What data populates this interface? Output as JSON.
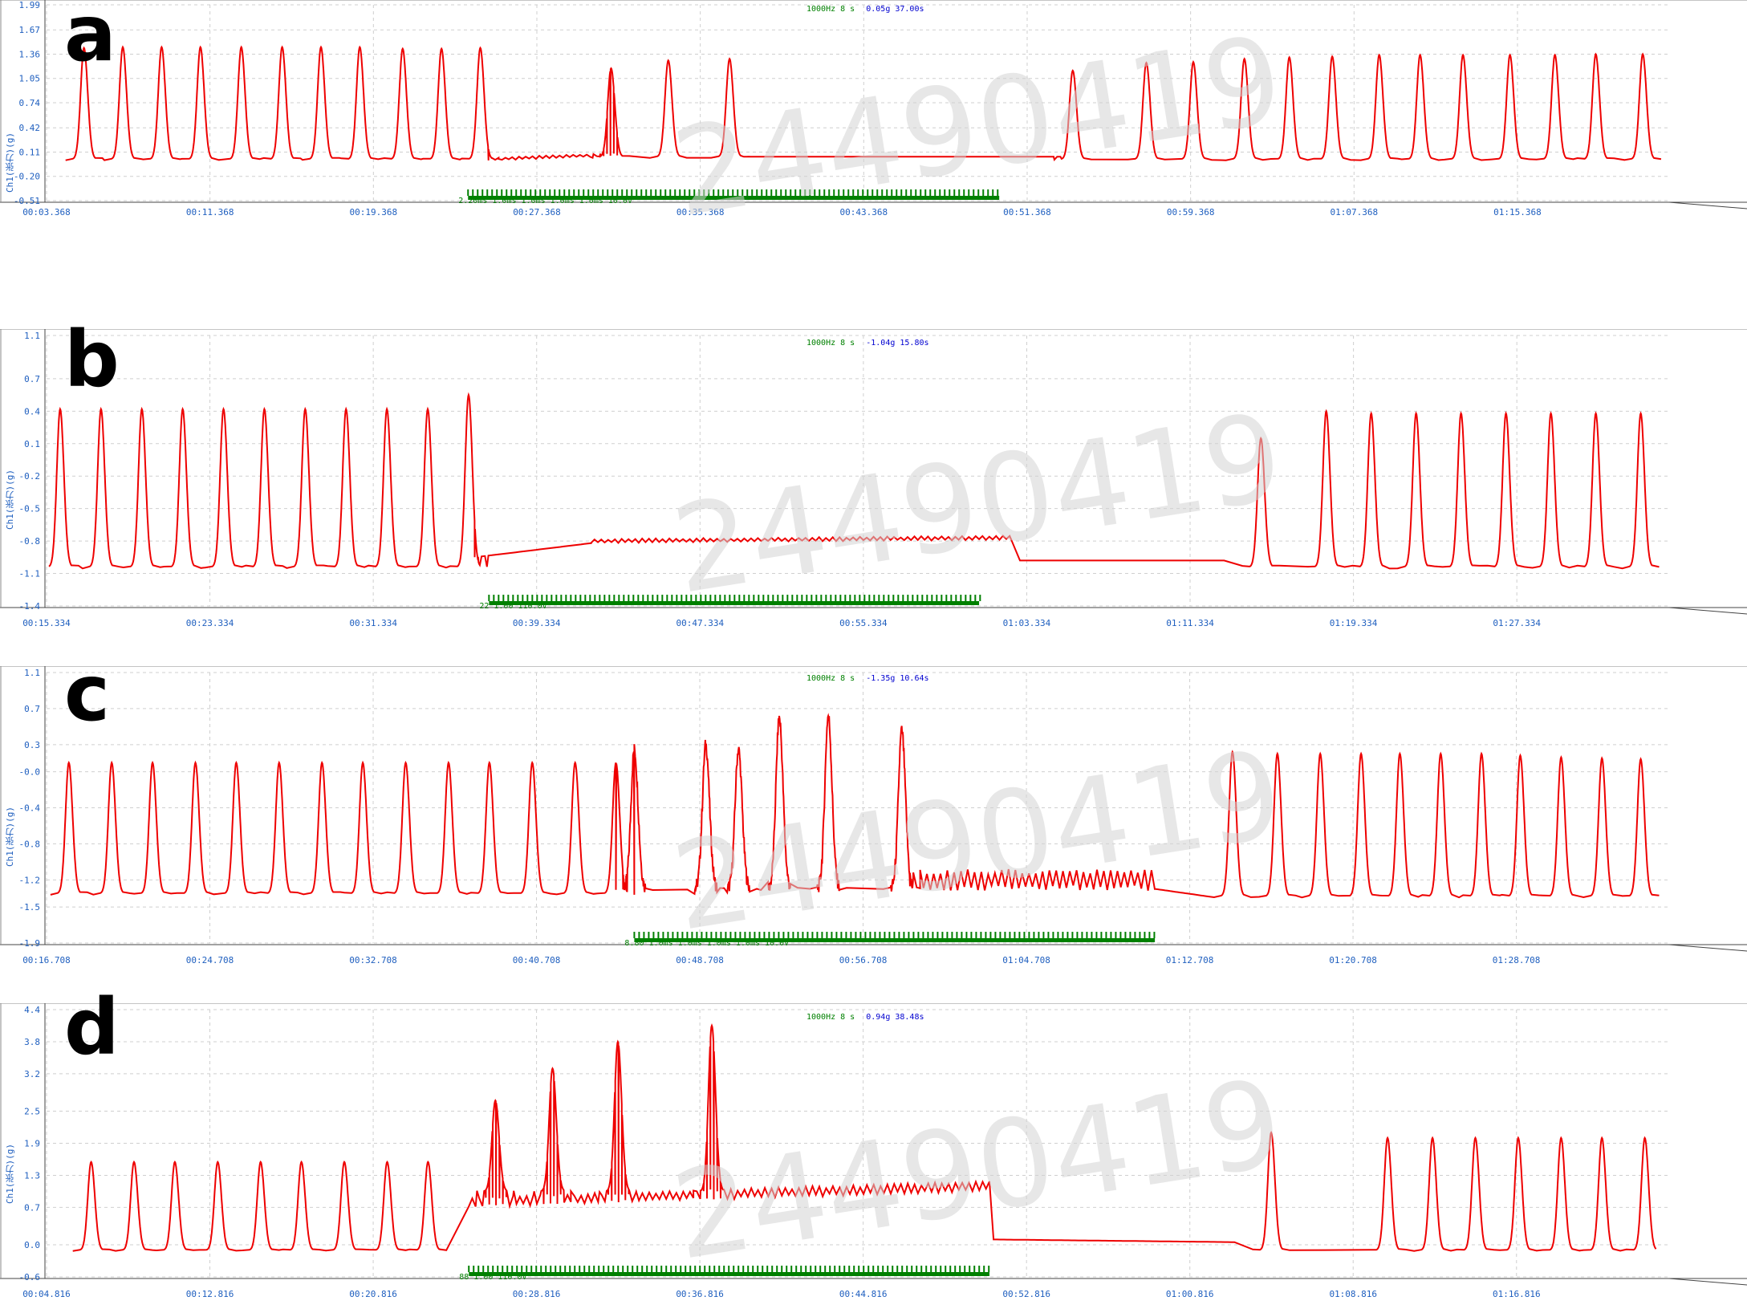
{
  "panels": [
    {
      "letter": "a",
      "rate_label": "1000Hz 8  s",
      "value_label": "0.05g 37.00s",
      "y_title": "Ch1(张力)(g)",
      "stim_label": "2.20ms 1.0ms 1.0ms 1.0ms 1.0ms 10.0V",
      "watermark": "24490419"
    },
    {
      "letter": "b",
      "rate_label": "1000Hz 8  s",
      "value_label": "-1.04g 15.80s",
      "y_title": "Ch1(张力)(g)",
      "stim_label": "22 1.00 110.0V",
      "watermark": "24490419"
    },
    {
      "letter": "c",
      "rate_label": "1000Hz 8  s",
      "value_label": "-1.35g 10.64s",
      "y_title": "Ch1(张力)(g)",
      "stim_label": "8.80 1.0ms 1.0ms 1.0ms 1.0ms 10.0V",
      "watermark": "24490419"
    },
    {
      "letter": "d",
      "rate_label": "1000Hz 8  s",
      "value_label": "0.94g 38.48s",
      "y_title": "Ch1(张力)(g)",
      "stim_label": "88 1.00 110.0V",
      "watermark": "24490419"
    }
  ],
  "colors": {
    "trace": "#ee0000",
    "stim": "#008000",
    "axis_text": "#1f5fbf",
    "grid": "#cfcfcf"
  },
  "chart_data": [
    {
      "type": "line",
      "panel": "a",
      "ylabel": "Ch1(张力)(g)",
      "y_ticks": [
        "1.99",
        "1.67",
        "1.36",
        "1.05",
        "0.74",
        "0.42",
        "0.11",
        "-0.20",
        "-0.51"
      ],
      "ylim": [
        -0.51,
        1.99
      ],
      "x_ticks": [
        "00:03.368",
        "00:11.368",
        "00:19.368",
        "00:27.368",
        "00:35.368",
        "00:43.368",
        "00:51.368",
        "00:59.368",
        "01:07.368",
        "01:15.368"
      ],
      "xlim_s": [
        3.368,
        82.4
      ],
      "baseline": 0.02,
      "segments": [
        {
          "kind": "peaks",
          "times_s": [
            5.2,
            7.1,
            9.0,
            10.9,
            12.9,
            14.9,
            16.8,
            18.7,
            20.8,
            22.7,
            24.6
          ],
          "heights": [
            1.44,
            1.45,
            1.45,
            1.45,
            1.45,
            1.45,
            1.45,
            1.45,
            1.43,
            1.43,
            1.44
          ],
          "baseline": 0.02
        },
        {
          "kind": "plateau",
          "t": [
            25.0,
            31.3
          ],
          "levels": [
            0.02,
            0.08
          ],
          "ripple": 0.02
        },
        {
          "kind": "peaks",
          "times_s": [
            31.0,
            33.8,
            36.8
          ],
          "heights": [
            1.18,
            1.28,
            1.3
          ],
          "baseline": 0.05
        },
        {
          "kind": "plateau",
          "t": [
            37.5,
            53.0
          ],
          "levels": [
            0.05,
            0.05
          ],
          "ripple": 0.0
        },
        {
          "kind": "peaks",
          "times_s": [
            53.6,
            57.2,
            59.5,
            62.0,
            64.2,
            66.3,
            68.6,
            70.6,
            72.7,
            75.0,
            77.2,
            79.2,
            81.5
          ],
          "heights": [
            1.15,
            1.25,
            1.26,
            1.3,
            1.32,
            1.33,
            1.35,
            1.35,
            1.35,
            1.35,
            1.35,
            1.36,
            1.36
          ],
          "baseline": 0.02
        }
      ],
      "stimulus_s": [
        24.0,
        50.0
      ]
    },
    {
      "type": "line",
      "panel": "b",
      "ylabel": "Ch1(张力)(g)",
      "y_ticks": [
        "1.1",
        "0.7",
        "0.4",
        "0.1",
        "-0.2",
        "-0.5",
        "-0.8",
        "-1.1",
        "-1.4"
      ],
      "ylim": [
        -1.4,
        1.1
      ],
      "x_ticks": [
        "00:15.334",
        "00:23.334",
        "00:31.334",
        "00:39.334",
        "00:47.334",
        "00:55.334",
        "01:03.334",
        "01:11.334",
        "01:19.334",
        "01:27.334"
      ],
      "xlim_s": [
        15.334,
        94.4
      ],
      "baseline": -1.04,
      "segments": [
        {
          "kind": "peaks",
          "times_s": [
            16.0,
            18.0,
            20.0,
            22.0,
            24.0,
            26.0,
            28.0,
            30.0,
            32.0,
            34.0,
            36.0
          ],
          "heights": [
            0.42,
            0.42,
            0.42,
            0.42,
            0.42,
            0.42,
            0.42,
            0.42,
            0.42,
            0.42,
            0.55
          ],
          "baseline": -1.04
        },
        {
          "kind": "plateau",
          "t": [
            36.3,
            42.0
          ],
          "levels": [
            -0.95,
            -0.82
          ],
          "ripple": 0.0
        },
        {
          "kind": "plateau",
          "t": [
            42.0,
            62.5
          ],
          "levels": [
            -0.8,
            -0.77
          ],
          "ripple": 0.02
        },
        {
          "kind": "plateau",
          "t": [
            63.0,
            73.0
          ],
          "levels": [
            -0.98,
            -0.98
          ],
          "ripple": 0.0
        },
        {
          "kind": "peaks",
          "times_s": [
            74.8,
            78.0,
            80.2,
            82.4,
            84.6,
            86.8,
            89.0,
            91.2,
            93.4
          ],
          "heights": [
            0.15,
            0.4,
            0.38,
            0.38,
            0.38,
            0.38,
            0.38,
            0.38,
            0.38
          ],
          "baseline": -1.04
        }
      ],
      "stimulus_s": [
        37.0,
        61.0
      ]
    },
    {
      "type": "line",
      "panel": "c",
      "ylabel": "Ch1(张力)(g)",
      "y_ticks": [
        "1.1",
        "0.7",
        "0.3",
        "-0.0",
        "-0.4",
        "-0.8",
        "-1.2",
        "-1.5",
        "-1.9"
      ],
      "ylim": [
        -1.9,
        1.1
      ],
      "x_ticks": [
        "00:16.708",
        "00:24.708",
        "00:32.708",
        "00:40.708",
        "00:48.708",
        "00:56.708",
        "01:04.708",
        "01:12.708",
        "01:20.708",
        "01:28.708"
      ],
      "xlim_s": [
        16.708,
        95.8
      ],
      "baseline": -1.35,
      "segments": [
        {
          "kind": "peaks",
          "times_s": [
            17.8,
            19.9,
            21.9,
            24.0,
            26.0,
            28.1,
            30.2,
            32.2,
            34.3,
            36.4,
            38.4,
            40.5,
            42.6,
            44.6
          ],
          "heights": [
            0.1,
            0.1,
            0.1,
            0.1,
            0.1,
            0.1,
            0.1,
            0.1,
            0.1,
            0.1,
            0.1,
            0.1,
            0.1,
            0.1
          ],
          "baseline": -1.35
        },
        {
          "kind": "peaks",
          "times_s": [
            45.5,
            49.0,
            50.6,
            52.6,
            55.0,
            58.6
          ],
          "heights": [
            0.25,
            0.3,
            0.25,
            0.6,
            0.62,
            0.45
          ],
          "baseline": -1.3,
          "ripple": 0.15
        },
        {
          "kind": "plateau",
          "t": [
            59.0,
            71.0
          ],
          "levels": [
            -1.2,
            -1.2
          ],
          "ripple": 0.12
        },
        {
          "kind": "plateau",
          "t": [
            71.0,
            73.5
          ],
          "levels": [
            -1.3,
            -1.38
          ],
          "ripple": 0.0
        },
        {
          "kind": "peaks",
          "times_s": [
            74.8,
            77.0,
            79.1,
            81.1,
            83.0,
            85.0,
            87.0,
            88.9,
            90.9,
            92.9,
            94.8
          ],
          "heights": [
            0.22,
            0.2,
            0.2,
            0.2,
            0.2,
            0.2,
            0.2,
            0.18,
            0.16,
            0.15,
            0.14
          ],
          "baseline": -1.38
        }
      ],
      "stimulus_s": [
        45.5,
        71.0
      ]
    },
    {
      "type": "line",
      "panel": "d",
      "ylabel": "Ch1(张力)(g)",
      "y_ticks": [
        "4.4",
        "3.8",
        "3.2",
        "2.5",
        "1.9",
        "1.3",
        "0.7",
        "0.0",
        "-0.6"
      ],
      "ylim": [
        -0.6,
        4.4
      ],
      "x_ticks": [
        "00:04.816",
        "00:12.816",
        "00:20.816",
        "00:28.816",
        "00:36.816",
        "00:44.816",
        "00:52.816",
        "01:00.816",
        "01:08.816",
        "01:16.816"
      ],
      "xlim_s": [
        4.816,
        83.9
      ],
      "baseline": -0.1,
      "segments": [
        {
          "kind": "peaks",
          "times_s": [
            7.0,
            9.1,
            11.1,
            13.2,
            15.3,
            17.3,
            19.4,
            21.5,
            23.5
          ],
          "heights": [
            1.55,
            1.55,
            1.55,
            1.55,
            1.55,
            1.55,
            1.55,
            1.55,
            1.55
          ],
          "baseline": -0.1
        },
        {
          "kind": "plateau",
          "t": [
            25.5,
            51.0
          ],
          "levels": [
            0.8,
            1.1
          ],
          "ripple": 0.1
        },
        {
          "kind": "peaks",
          "times_s": [
            26.8,
            29.6,
            32.8,
            37.4
          ],
          "heights": [
            2.7,
            3.3,
            3.8,
            4.1
          ],
          "baseline": 1.0
        },
        {
          "kind": "plateau",
          "t": [
            51.2,
            63.0
          ],
          "levels": [
            0.1,
            0.05
          ],
          "ripple": 0.0
        },
        {
          "kind": "peaks",
          "times_s": [
            64.8,
            70.5,
            72.7,
            74.8,
            76.9,
            79.0,
            81.0,
            83.1
          ],
          "heights": [
            2.1,
            2.0,
            2.0,
            2.0,
            2.0,
            2.0,
            2.0,
            2.0
          ],
          "baseline": -0.1
        }
      ],
      "stimulus_s": [
        25.5,
        51.0
      ]
    }
  ]
}
